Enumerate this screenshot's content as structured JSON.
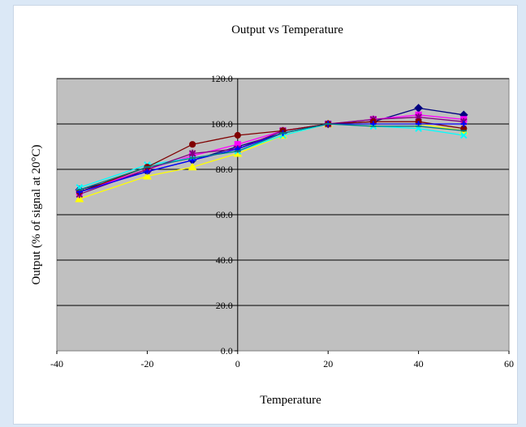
{
  "chart_data": {
    "type": "line",
    "title": "Output vs Temperature",
    "xlabel": "Temperature",
    "ylabel": "Output (% of signal at 20°C)",
    "xlim": [
      -40,
      60
    ],
    "ylim": [
      0,
      120
    ],
    "xticks": [
      "-40",
      "-20",
      "0",
      "20",
      "40",
      "60"
    ],
    "yticks": [
      "0.0",
      "20.0",
      "40.0",
      "60.0",
      "80.0",
      "100.0",
      "120.0"
    ],
    "grid": true,
    "colors": {
      "plot_bg": "#c0c0c0",
      "page_bg": "#dbe8f6"
    },
    "series": [
      {
        "color": "#000080",
        "marker": "diamond",
        "x": [
          -35,
          -20,
          -10,
          0,
          10,
          20,
          30,
          40,
          50
        ],
        "y": [
          71,
          79,
          84,
          90,
          96,
          100,
          101,
          107,
          104
        ]
      },
      {
        "color": "#ff00ff",
        "marker": "square",
        "x": [
          -35,
          -20,
          -10,
          0,
          10,
          20,
          30,
          40,
          50
        ],
        "y": [
          70,
          80,
          86,
          91,
          97,
          100,
          102,
          104,
          102
        ]
      },
      {
        "color": "#ffff00",
        "marker": "triangle",
        "x": [
          -35,
          -20,
          -10,
          0,
          10,
          20,
          30,
          40,
          50
        ],
        "y": [
          67,
          77,
          81,
          87,
          95,
          100,
          100,
          100,
          97
        ]
      },
      {
        "color": "#00ffff",
        "marker": "x",
        "x": [
          -35,
          -20,
          -10,
          0,
          10,
          20,
          30,
          40,
          50
        ],
        "y": [
          72,
          82,
          85,
          88,
          95,
          100,
          99,
          98,
          95
        ]
      },
      {
        "color": "#800080",
        "marker": "asterisk",
        "x": [
          -35,
          -20,
          -10,
          0,
          10,
          20,
          30,
          40,
          50
        ],
        "y": [
          69,
          80,
          87,
          89,
          97,
          100,
          102,
          103,
          101
        ]
      },
      {
        "color": "#800000",
        "marker": "circle",
        "x": [
          -35,
          -20,
          -10,
          0,
          10,
          20,
          30,
          40,
          50
        ],
        "y": [
          70,
          81,
          91,
          95,
          97,
          100,
          101,
          101,
          98
        ]
      },
      {
        "color": "#0000ff",
        "marker": "plus",
        "x": [
          -35,
          -20,
          -10,
          0,
          10,
          20,
          30,
          40,
          50
        ],
        "y": [
          70,
          79,
          84,
          89,
          96,
          100,
          100,
          100,
          100
        ]
      },
      {
        "color": "#008080",
        "marker": "dash",
        "x": [
          -35,
          -20,
          -10,
          0,
          10,
          20,
          30,
          40,
          50
        ],
        "y": [
          71,
          81,
          85,
          88,
          96,
          100,
          99,
          99,
          97
        ]
      }
    ]
  }
}
